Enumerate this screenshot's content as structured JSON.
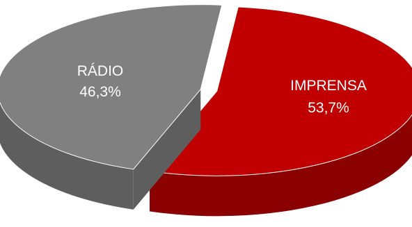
{
  "chart_data": {
    "type": "pie",
    "style": "3d-exploded",
    "slices": [
      {
        "label": "IMPRENSA",
        "value": 53.7,
        "display": "53,7%",
        "color": "#C00000",
        "side_color": "#8B0000"
      },
      {
        "label": "RÁDIO",
        "value": 46.3,
        "display": "46,3%",
        "color": "#808080",
        "side_color": "#5E5E5E"
      }
    ],
    "title": "",
    "legend": "none"
  }
}
